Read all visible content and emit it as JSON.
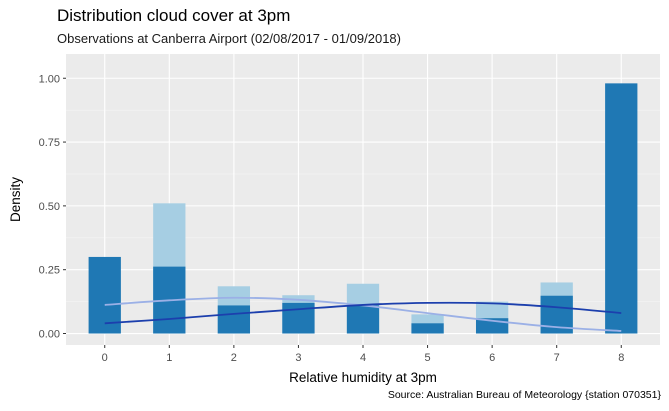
{
  "chart_data": {
    "type": "bar",
    "title": "Distribution cloud cover at 3pm",
    "subtitle": "Observations at Canberra Airport (02/08/2017 - 01/09/2018)",
    "caption": "Source: Australian Bureau of Meteorology {station 070351}",
    "xlabel": "Relative humidity at 3pm",
    "ylabel": "Density",
    "categories": [
      0,
      1,
      2,
      3,
      4,
      5,
      6,
      7,
      8
    ],
    "xlim": [
      -0.6,
      8.6
    ],
    "ylim": [
      -0.045,
      1.095
    ],
    "x_ticks": [
      "0",
      "1",
      "2",
      "3",
      "4",
      "5",
      "6",
      "7",
      "8"
    ],
    "y_ticks": [
      0.0,
      0.25,
      0.5,
      0.75,
      1.0
    ],
    "y_tick_labels": [
      "0.00",
      "0.25",
      "0.50",
      "0.75",
      "1.00"
    ],
    "grid": true,
    "legend": "none",
    "series": [
      {
        "values": [
          0.0,
          0.51,
          0.185,
          0.15,
          0.195,
          0.075,
          0.125,
          0.2,
          0.0
        ],
        "color": "#a6cee3",
        "smooth": [
          0.112,
          0.13,
          0.14,
          0.132,
          0.11,
          0.08,
          0.05,
          0.025,
          0.01
        ]
      },
      {
        "values": [
          0.3,
          0.262,
          0.11,
          0.12,
          0.11,
          0.04,
          0.06,
          0.148,
          0.98
        ],
        "color": "#1f78b4",
        "smooth": [
          0.04,
          0.057,
          0.077,
          0.095,
          0.112,
          0.12,
          0.118,
          0.103,
          0.08
        ]
      }
    ],
    "smooth_colors": [
      "#9bb0e6",
      "#1c3fad"
    ]
  }
}
